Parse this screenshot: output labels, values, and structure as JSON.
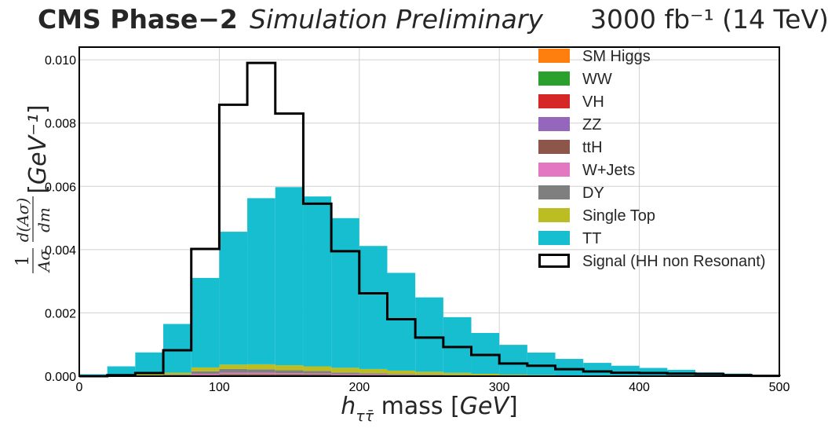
{
  "header": {
    "experiment": "CMS Phase−2",
    "status": "Simulation Preliminary",
    "lumi_energy": "3000 fb⁻¹ (14 TeV)"
  },
  "chart_data": {
    "type": "histogram",
    "title": "",
    "xlabel": "hττ̄ mass [GeV]",
    "ylabel": "1/(Ασ) d(Ασ)/dm [GeV⁻¹]",
    "xlim": [
      0,
      500
    ],
    "ylim": [
      0,
      0.0104
    ],
    "x_ticks": [
      "0",
      "100",
      "200",
      "300",
      "400",
      "500"
    ],
    "y_ticks": [
      "0.000",
      "0.002",
      "0.004",
      "0.006",
      "0.008",
      "0.010"
    ],
    "grid": true,
    "legend_position": "top-right",
    "bin_edges": [
      0,
      20,
      40,
      60,
      80,
      100,
      120,
      140,
      160,
      180,
      200,
      220,
      240,
      260,
      280,
      300,
      320,
      340,
      360,
      380,
      400,
      420,
      440,
      460,
      480,
      500
    ],
    "stacked_series": [
      {
        "name": "SM Higgs",
        "color": "#ff7f0e",
        "values": [
          0,
          0,
          0,
          0,
          1e-05,
          2e-05,
          2e-05,
          2e-05,
          2e-05,
          1e-05,
          1e-05,
          1e-05,
          1e-05,
          5e-06,
          5e-06,
          0,
          0,
          0,
          0,
          0,
          0,
          0,
          0,
          0,
          0
        ]
      },
      {
        "name": "WW",
        "color": "#2ca02c",
        "values": [
          0,
          0,
          0,
          1e-05,
          2e-05,
          2e-05,
          2e-05,
          2e-05,
          2e-05,
          2e-05,
          1e-05,
          1e-05,
          1e-05,
          1e-05,
          1e-05,
          1e-05,
          5e-06,
          5e-06,
          0,
          0,
          0,
          0,
          0,
          0,
          0
        ]
      },
      {
        "name": "VH",
        "color": "#d62728",
        "values": [
          0,
          0,
          0,
          0,
          5e-06,
          1e-05,
          1e-05,
          1e-05,
          1e-05,
          5e-06,
          5e-06,
          5e-06,
          0,
          0,
          0,
          0,
          0,
          0,
          0,
          0,
          0,
          0,
          0,
          0,
          0
        ]
      },
      {
        "name": "ZZ",
        "color": "#9467bd",
        "values": [
          0,
          0,
          0,
          0,
          5e-06,
          1e-05,
          1e-05,
          1e-05,
          5e-06,
          5e-06,
          5e-06,
          0,
          0,
          0,
          0,
          0,
          0,
          0,
          0,
          0,
          0,
          0,
          0,
          0,
          0
        ]
      },
      {
        "name": "ttH",
        "color": "#8c564b",
        "values": [
          0,
          0,
          0,
          0,
          5e-06,
          5e-06,
          5e-06,
          5e-06,
          5e-06,
          5e-06,
          5e-06,
          0,
          0,
          0,
          0,
          0,
          0,
          0,
          0,
          0,
          0,
          0,
          0,
          0,
          0
        ]
      },
      {
        "name": "W+Jets",
        "color": "#e377c2",
        "values": [
          0,
          0,
          0,
          1e-05,
          3e-05,
          4e-05,
          4e-05,
          3e-05,
          3e-05,
          2e-05,
          2e-05,
          1e-05,
          1e-05,
          1e-05,
          0,
          0,
          0,
          0,
          0,
          0,
          0,
          0,
          0,
          0,
          0
        ]
      },
      {
        "name": "DY",
        "color": "#7f7f7f",
        "values": [
          0,
          0,
          1e-05,
          3e-05,
          8e-05,
          0.00012,
          0.00011,
          9e-05,
          7e-05,
          5e-05,
          4e-05,
          3e-05,
          2e-05,
          1e-05,
          1e-05,
          0,
          0,
          0,
          0,
          0,
          0,
          0,
          0,
          0,
          0
        ]
      },
      {
        "name": "Single Top",
        "color": "#bcbd22",
        "values": [
          0,
          2e-05,
          5e-05,
          6e-05,
          0.00012,
          0.00014,
          0.00016,
          0.00016,
          0.00015,
          0.00015,
          0.00013,
          0.00011,
          9e-05,
          7e-05,
          5e-05,
          4e-05,
          3e-05,
          2e-05,
          2e-05,
          1e-05,
          1e-05,
          1e-05,
          0,
          0,
          0
        ]
      },
      {
        "name": "TT",
        "color": "#17becf",
        "values": [
          6e-05,
          0.00029,
          0.00069,
          0.00154,
          0.00283,
          0.0042,
          0.00525,
          0.00563,
          0.00537,
          0.00473,
          0.00389,
          0.00309,
          0.00235,
          0.00176,
          0.00129,
          0.00094,
          0.00071,
          0.00052,
          0.0004,
          0.00032,
          0.00025,
          0.00019,
          0.00012,
          8e-05,
          4e-05
        ]
      }
    ],
    "signal": {
      "name": "Signal (HH non Resonant)",
      "color": "#000000",
      "values": [
        0,
        3e-05,
        0.0001,
        0.00082,
        0.00402,
        0.00858,
        0.0099,
        0.0083,
        0.00545,
        0.00395,
        0.00262,
        0.0018,
        0.00122,
        0.00092,
        0.00067,
        0.0004,
        0.00033,
        0.00022,
        0.00015,
        0.00011,
        0.0001,
        8e-05,
        7e-05,
        3e-05,
        1e-05
      ]
    }
  }
}
